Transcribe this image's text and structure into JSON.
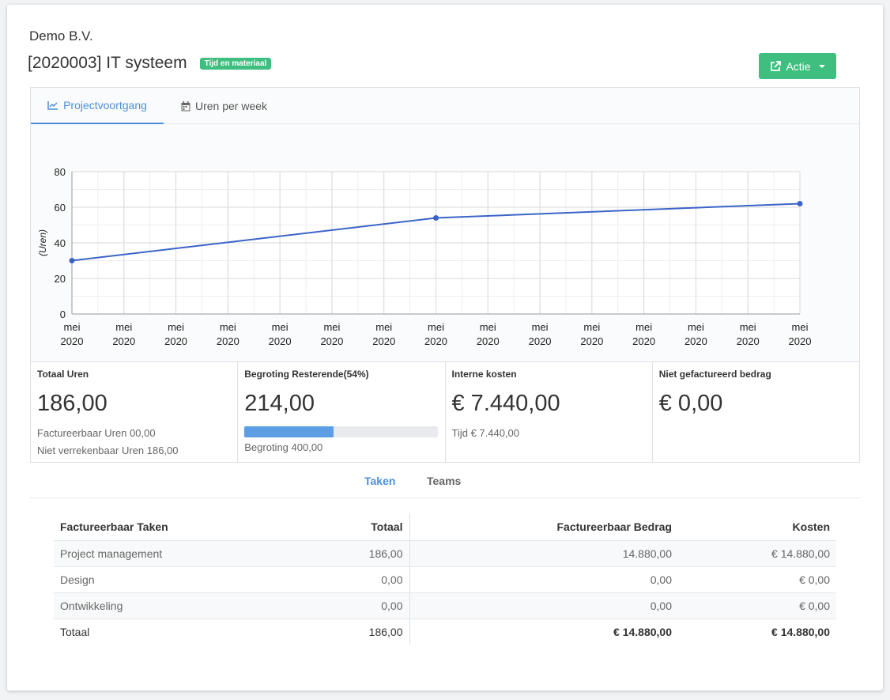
{
  "header": {
    "company": "Demo B.V.",
    "title": "[2020003] IT systeem",
    "badge": "Tijd en materiaal",
    "action_label": "Actie"
  },
  "tabs": [
    {
      "label": "Projectvoortgang",
      "icon": "chart-line-icon"
    },
    {
      "label": "Uren per week",
      "icon": "calendar-icon"
    }
  ],
  "chart_data": {
    "type": "line",
    "ylabel": "(Uren)",
    "ylim": [
      0,
      80
    ],
    "yticks": [
      "0",
      "20",
      "40",
      "60",
      "80"
    ],
    "categories": [
      "mei 2020",
      "mei 2020",
      "mei 2020",
      "mei 2020",
      "mei 2020",
      "mei 2020",
      "mei 2020",
      "mei 2020",
      "mei 2020",
      "mei 2020",
      "mei 2020",
      "mei 2020",
      "mei 2020",
      "mei 2020",
      "mei 2020"
    ],
    "points": [
      {
        "index": 0,
        "y": 30
      },
      {
        "index": 7,
        "y": 54
      },
      {
        "index": 14,
        "y": 62
      }
    ],
    "color": "#3b64c8",
    "grid": true
  },
  "stats": {
    "totaal": {
      "label": "Totaal Uren",
      "value": "186,00",
      "line1": "Factureerbaar Uren 00,00",
      "line2": "Niet verrekenbaar Uren 186,00"
    },
    "begroting": {
      "label": "Begroting Resterende(54%)",
      "value": "214,00",
      "progress": 0.46,
      "sub": "Begroting 400,00"
    },
    "interne": {
      "label": "Interne kosten",
      "value": "€ 7.440,00",
      "sub": "Tijd € 7.440,00"
    },
    "niet": {
      "label": "Niet gefactureerd bedrag",
      "value": "€ 0,00"
    }
  },
  "subtabs": {
    "taken": "Taken",
    "teams": "Teams"
  },
  "table": {
    "headers": [
      "Factureerbaar Taken",
      "Totaal",
      "Factureerbaar Bedrag",
      "Kosten"
    ],
    "rows": [
      [
        "Project management",
        "186,00",
        "14.880,00",
        "€ 14.880,00"
      ],
      [
        "Design",
        "0,00",
        "0,00",
        "€ 0,00"
      ],
      [
        "Ontwikkeling",
        "0,00",
        "0,00",
        "€ 0,00"
      ]
    ],
    "total": [
      "Totaal",
      "186,00",
      "€ 14.880,00",
      "€ 14.880,00"
    ]
  }
}
